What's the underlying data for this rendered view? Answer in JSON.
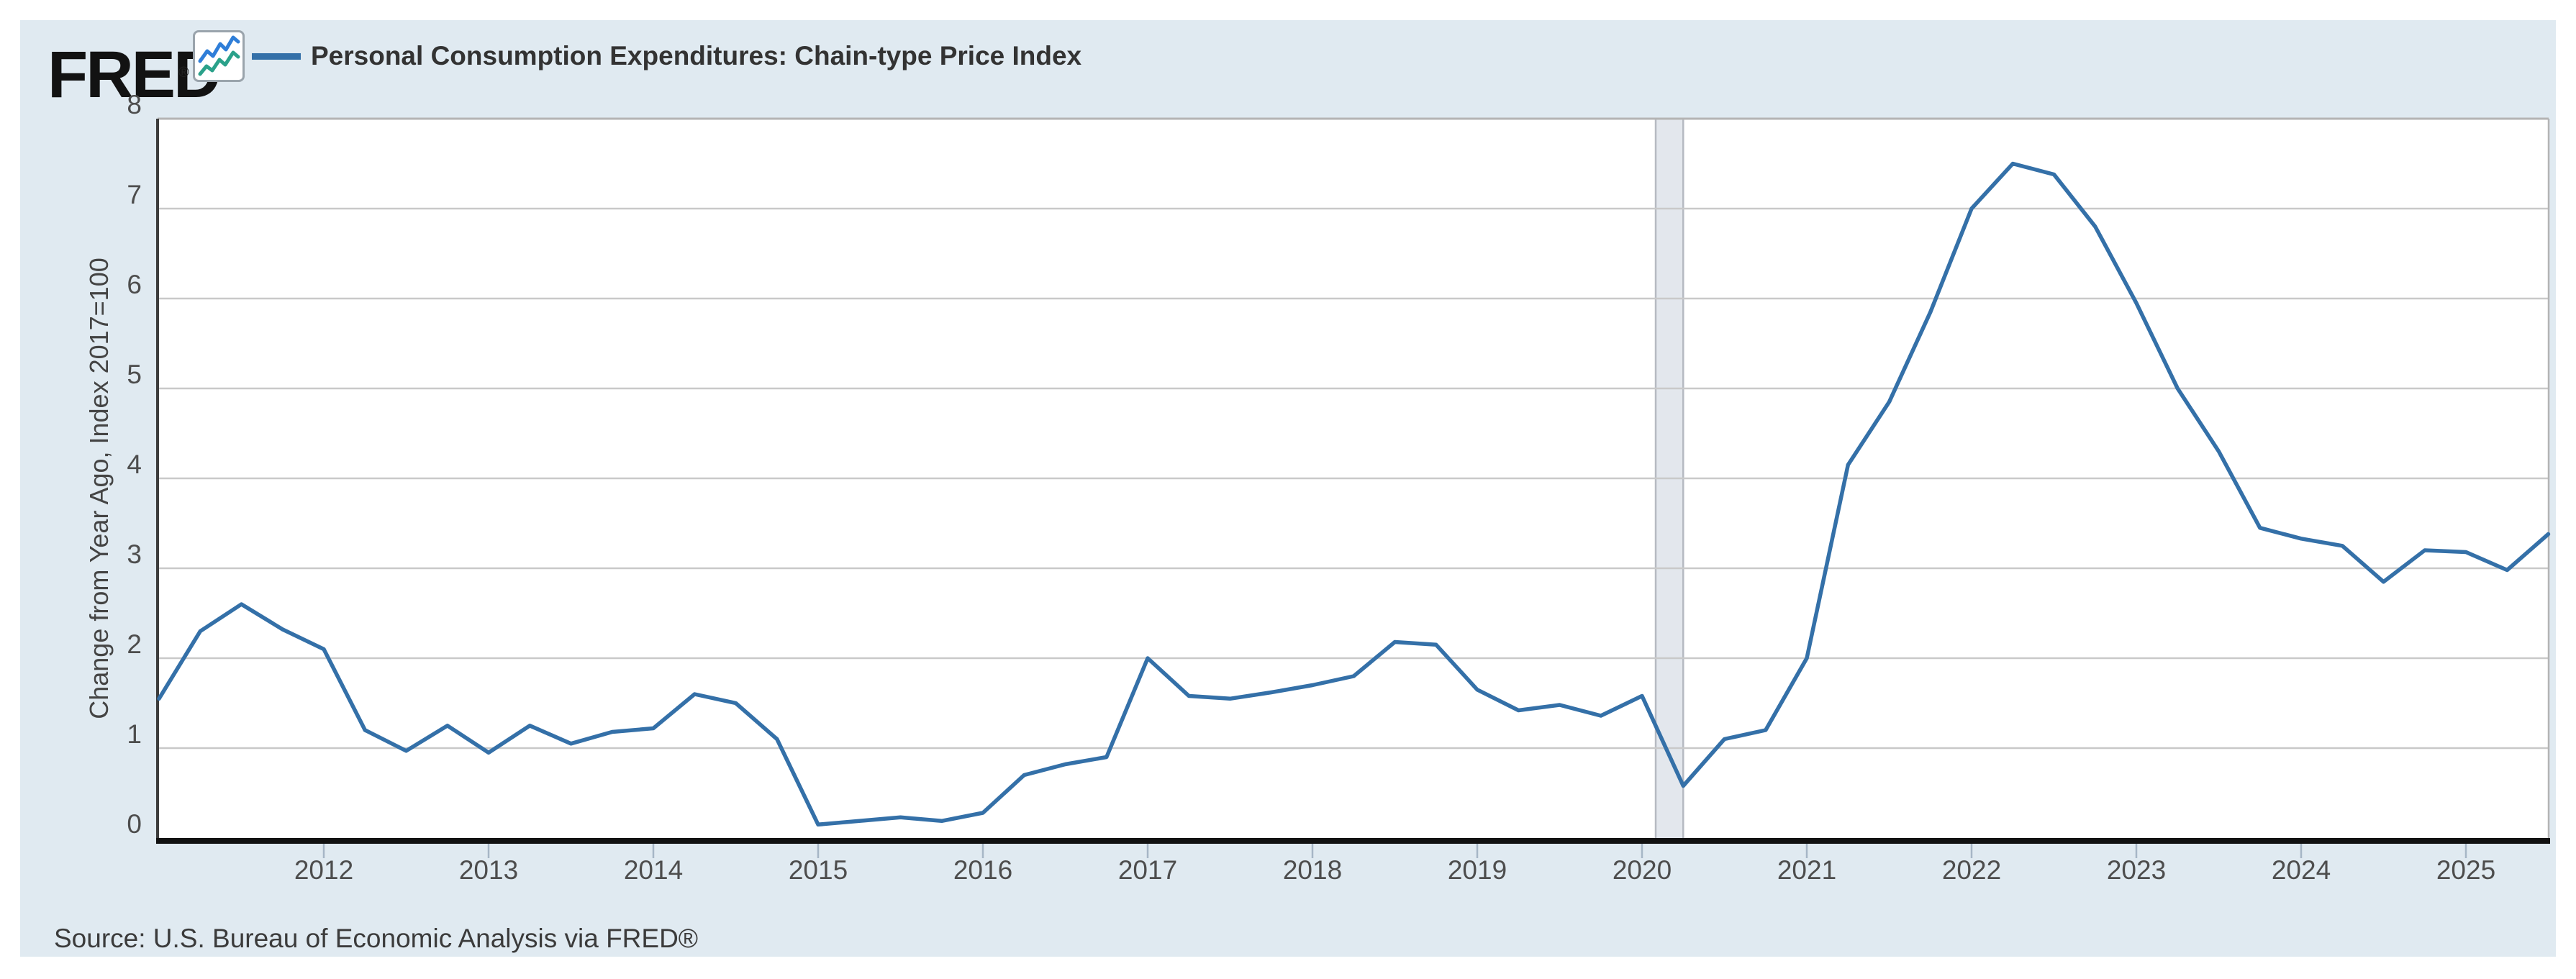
{
  "logo": {
    "text": "FRED",
    "registered_mark": "®",
    "icon": "fred-graph-icon"
  },
  "legend": {
    "swatch": "blue-line",
    "label": "Personal Consumption Expenditures: Chain-type Price Index"
  },
  "source": {
    "text": "Source: U.S. Bureau of Economic Analysis via FRED®"
  },
  "colors": {
    "line": "#3470a8",
    "panel_background": "#e0eaf1",
    "plot_background": "#ffffff",
    "gridline": "#c9c9c9",
    "recession_band": "#e3e7ed",
    "recession_band_edge": "#b6bac2",
    "axis_bottom": "#111111",
    "tick_label": "#4d4d4d",
    "logo_icon_blue": "#2f7ed8",
    "logo_icon_green": "#2aa18a"
  },
  "chart_data": {
    "type": "line",
    "title": "Personal Consumption Expenditures: Chain-type Price Index",
    "ylabel": "Change from Year Ago, Index 2017=100",
    "xlabel": "",
    "ylim": [
      0,
      8
    ],
    "y_ticks": [
      0,
      1,
      2,
      3,
      4,
      5,
      6,
      7,
      8
    ],
    "x_ticks": [
      2012,
      2013,
      2014,
      2015,
      2016,
      2017,
      2018,
      2019,
      2020,
      2021,
      2022,
      2023,
      2024,
      2025
    ],
    "x_range_years": [
      2011.0,
      2025.5
    ],
    "grid": "horizontal",
    "legend_position": "top-left",
    "recession_band": {
      "name": "COVID-19 recession",
      "from": 2020.083,
      "to": 2020.25
    },
    "series_name": "Personal Consumption Expenditures: Chain-type Price Index",
    "frequency": "quarterly",
    "periods": [
      "2011 Q1",
      "2011 Q2",
      "2011 Q3",
      "2011 Q4",
      "2012 Q1",
      "2012 Q2",
      "2012 Q3",
      "2012 Q4",
      "2013 Q1",
      "2013 Q2",
      "2013 Q3",
      "2013 Q4",
      "2014 Q1",
      "2014 Q2",
      "2014 Q3",
      "2014 Q4",
      "2015 Q1",
      "2015 Q2",
      "2015 Q3",
      "2015 Q4",
      "2016 Q1",
      "2016 Q2",
      "2016 Q3",
      "2016 Q4",
      "2017 Q1",
      "2017 Q2",
      "2017 Q3",
      "2017 Q4",
      "2018 Q1",
      "2018 Q2",
      "2018 Q3",
      "2018 Q4",
      "2019 Q1",
      "2019 Q2",
      "2019 Q3",
      "2019 Q4",
      "2020 Q1",
      "2020 Q2",
      "2020 Q3",
      "2020 Q4",
      "2021 Q1",
      "2021 Q2",
      "2021 Q3",
      "2021 Q4",
      "2022 Q1",
      "2022 Q2",
      "2022 Q3",
      "2022 Q4",
      "2023 Q1",
      "2023 Q2",
      "2023 Q3",
      "2023 Q4",
      "2024 Q1",
      "2024 Q2",
      "2024 Q3",
      "2024 Q4",
      "2025 Q1",
      "2025 Q2",
      "2025 Q3"
    ],
    "values": [
      1.55,
      2.3,
      2.6,
      2.32,
      2.1,
      1.2,
      0.97,
      1.25,
      0.95,
      1.25,
      1.05,
      1.18,
      1.22,
      1.6,
      1.5,
      1.1,
      0.15,
      0.19,
      0.23,
      0.19,
      0.28,
      0.7,
      0.82,
      0.9,
      2.0,
      1.58,
      1.55,
      1.62,
      1.7,
      1.8,
      2.18,
      2.15,
      1.65,
      1.42,
      1.48,
      1.36,
      1.58,
      0.58,
      1.1,
      1.2,
      2.0,
      4.15,
      4.85,
      5.85,
      7.0,
      7.5,
      7.38,
      6.8,
      5.95,
      5.0,
      4.3,
      3.45,
      3.33,
      3.25,
      2.85,
      3.2,
      3.18,
      2.98,
      3.38
    ]
  }
}
